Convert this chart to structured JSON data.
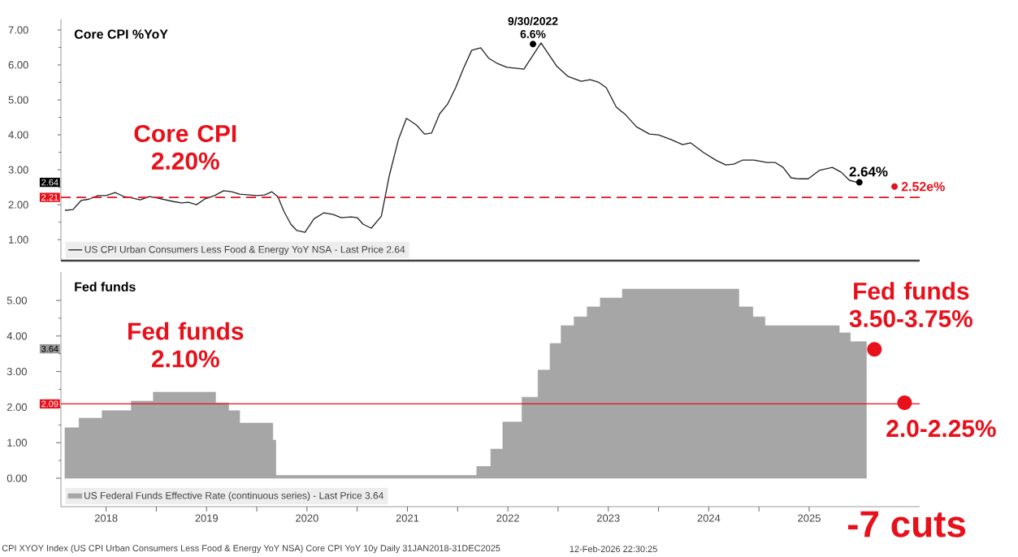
{
  "chart_data": [
    {
      "type": "line",
      "title": "Core CPI %YoY",
      "xlim": [
        2018.05,
        2026.6
      ],
      "ylim": [
        0.4,
        7.3
      ],
      "tick_labels": "y",
      "legend": "bottom left",
      "yticks": [
        {
          "value": 1,
          "label": "1.00"
        },
        {
          "value": 2,
          "label": "2.00"
        },
        {
          "value": 3,
          "label": "3.00"
        },
        {
          "value": 4,
          "label": "4.00"
        },
        {
          "value": 5,
          "label": "5.00"
        },
        {
          "value": 6,
          "label": "6.00"
        },
        {
          "value": 7,
          "label": "7.00"
        }
      ],
      "series": [
        {
          "name": "US CPI Urban Consumers Less Food & Energy YoY NSA - Last Price 2.64",
          "color": "#222222",
          "x": [
            2018.09,
            2018.17,
            2018.25,
            2018.33,
            2018.42,
            2018.5,
            2018.59,
            2018.68,
            2018.76,
            2018.84,
            2018.93,
            2019.01,
            2019.09,
            2019.17,
            2019.25,
            2019.32,
            2019.4,
            2019.48,
            2019.58,
            2019.67,
            2019.75,
            2019.83,
            2019.93,
            2020.0,
            2020.08,
            2020.15,
            2020.21,
            2020.27,
            2020.34,
            2020.4,
            2020.48,
            2020.57,
            2020.67,
            2020.76,
            2020.84,
            2020.94,
            2021.0,
            2021.06,
            2021.14,
            2021.24,
            2021.32,
            2021.41,
            2021.49,
            2021.59,
            2021.67,
            2021.74,
            2021.82,
            2021.9,
            2021.98,
            2022.06,
            2022.14,
            2022.23,
            2022.31,
            2022.39,
            2022.49,
            2022.57,
            2022.66,
            2022.83,
            2022.99,
            2023.1,
            2023.23,
            2023.32,
            2023.4,
            2023.48,
            2023.58,
            2023.67,
            2023.78,
            2023.91,
            2024.0,
            2024.13,
            2024.24,
            2024.32,
            2024.45,
            2024.58,
            2024.67,
            2024.75,
            2024.84,
            2024.95,
            2025.08,
            2025.16,
            2025.24,
            2025.32,
            2025.4,
            2025.49,
            2025.6,
            2025.73,
            2025.82,
            2025.9,
            2025.98
          ],
          "values": [
            1.84,
            1.86,
            2.12,
            2.16,
            2.26,
            2.26,
            2.35,
            2.23,
            2.19,
            2.14,
            2.23,
            2.19,
            2.14,
            2.09,
            2.05,
            2.07,
            2.0,
            2.16,
            2.26,
            2.4,
            2.37,
            2.3,
            2.28,
            2.26,
            2.28,
            2.37,
            2.23,
            1.81,
            1.44,
            1.26,
            1.21,
            1.6,
            1.77,
            1.72,
            1.63,
            1.65,
            1.63,
            1.44,
            1.33,
            1.67,
            2.84,
            3.86,
            4.47,
            4.28,
            4.02,
            4.05,
            4.6,
            4.88,
            5.35,
            5.91,
            6.42,
            6.49,
            6.19,
            6.05,
            5.93,
            5.91,
            5.88,
            6.63,
            5.95,
            5.67,
            5.53,
            5.58,
            5.51,
            5.35,
            4.79,
            4.58,
            4.23,
            4.02,
            4.0,
            3.86,
            3.72,
            3.77,
            3.49,
            3.26,
            3.14,
            3.16,
            3.28,
            3.28,
            3.21,
            3.21,
            3.07,
            2.77,
            2.74,
            2.74,
            2.98,
            3.07,
            2.93,
            2.7,
            2.64
          ]
        }
      ],
      "ref_lines": [
        {
          "axis": "y",
          "value": 2.21,
          "label": "2.21",
          "color": "#e8101a",
          "line_style": "dashed"
        }
      ],
      "annotations": [
        {
          "text": "9/30/2022 6.6%",
          "x": 2022.75,
          "y": 6.6
        },
        {
          "text": "2.64%",
          "x": 2026.0,
          "y": 2.64
        },
        {
          "text": "2.52e%",
          "x": 2026.35,
          "y": 2.52
        },
        "Core CPI 2.20%",
        "2.64"
      ]
    },
    {
      "type": "area",
      "title": "Fed funds",
      "xlim": [
        2018.05,
        2026.6
      ],
      "ylim": [
        -0.8,
        5.8
      ],
      "legend": "bottom left",
      "xticks": [
        {
          "value": 2018.5,
          "label": "2018"
        },
        {
          "value": 2019,
          "label": null
        },
        {
          "value": 2019.5,
          "label": "2019"
        },
        {
          "value": 2020,
          "label": null
        },
        {
          "value": 2020.5,
          "label": "2020"
        },
        {
          "value": 2021,
          "label": null
        },
        {
          "value": 2021.5,
          "label": "2021"
        },
        {
          "value": 2022,
          "label": null
        },
        {
          "value": 2022.5,
          "label": "2022"
        },
        {
          "value": 2023,
          "label": null
        },
        {
          "value": 2023.5,
          "label": "2023"
        },
        {
          "value": 2024,
          "label": null
        },
        {
          "value": 2024.5,
          "label": "2024"
        },
        {
          "value": 2025,
          "label": null
        },
        {
          "value": 2025.5,
          "label": "2025"
        }
      ],
      "yticks": [
        {
          "value": 0,
          "label": "0.00"
        },
        {
          "value": 1,
          "label": "1.00"
        },
        {
          "value": 2,
          "label": "2.00"
        },
        {
          "value": 3,
          "label": "3.00"
        },
        {
          "value": 4,
          "label": "4.00"
        },
        {
          "value": 5,
          "label": "5.00"
        }
      ],
      "series": [
        {
          "name": "US Federal Funds Effective Rate (continuous series) - Last Price 3.64",
          "color": "#a6a6a6",
          "x": [
            2018.09,
            2018.23,
            2018.23,
            2018.46,
            2018.46,
            2018.75,
            2018.75,
            2018.97,
            2018.97,
            2019.59,
            2019.59,
            2019.72,
            2019.72,
            2019.83,
            2019.83,
            2020.16,
            2020.16,
            2020.19,
            2020.19,
            2022.19,
            2022.19,
            2022.33,
            2022.33,
            2022.45,
            2022.45,
            2022.64,
            2022.64,
            2022.8,
            2022.8,
            2022.92,
            2022.92,
            2023.03,
            2023.03,
            2023.16,
            2023.16,
            2023.29,
            2023.29,
            2023.42,
            2023.42,
            2023.64,
            2023.64,
            2024.8,
            2024.8,
            2024.94,
            2024.94,
            2025.06,
            2025.06,
            2025.8,
            2025.8,
            2025.91,
            2025.91,
            2026.07
          ],
          "values": [
            1.42,
            1.42,
            1.69,
            1.69,
            1.9,
            1.9,
            2.17,
            2.17,
            2.42,
            2.42,
            2.12,
            2.12,
            1.9,
            1.9,
            1.55,
            1.55,
            1.07,
            1.07,
            0.08,
            0.08,
            0.33,
            0.33,
            0.82,
            0.82,
            1.58,
            1.58,
            2.28,
            2.28,
            3.04,
            3.04,
            3.79,
            3.79,
            4.29,
            4.29,
            4.54,
            4.54,
            4.82,
            4.82,
            5.07,
            5.07,
            5.32,
            5.32,
            4.82,
            4.82,
            4.54,
            4.54,
            4.29,
            4.29,
            4.09,
            4.09,
            3.84,
            3.84
          ]
        }
      ],
      "ref_lines": [
        {
          "axis": "y",
          "value": 2.09,
          "label": "2.09",
          "color": "#e8101a",
          "line_style": "solid"
        }
      ],
      "annotations": [
        "3.64",
        "Fed funds 2.10%",
        {
          "text": "Fed funds 3.50-3.75%",
          "x": 2026.15,
          "y": 3.625
        },
        {
          "text": "2.0-2.25%",
          "x": 2026.45,
          "y": 2.125
        },
        "-7 cuts",
        "CPI XYOY Index (US CPI Urban Consumers Less Food & Energy YoY NSA) Core CPI YoY 10y Daily 31JAN2018-31DEC2025",
        "12-Feb-2026 22:30:25"
      ]
    }
  ]
}
